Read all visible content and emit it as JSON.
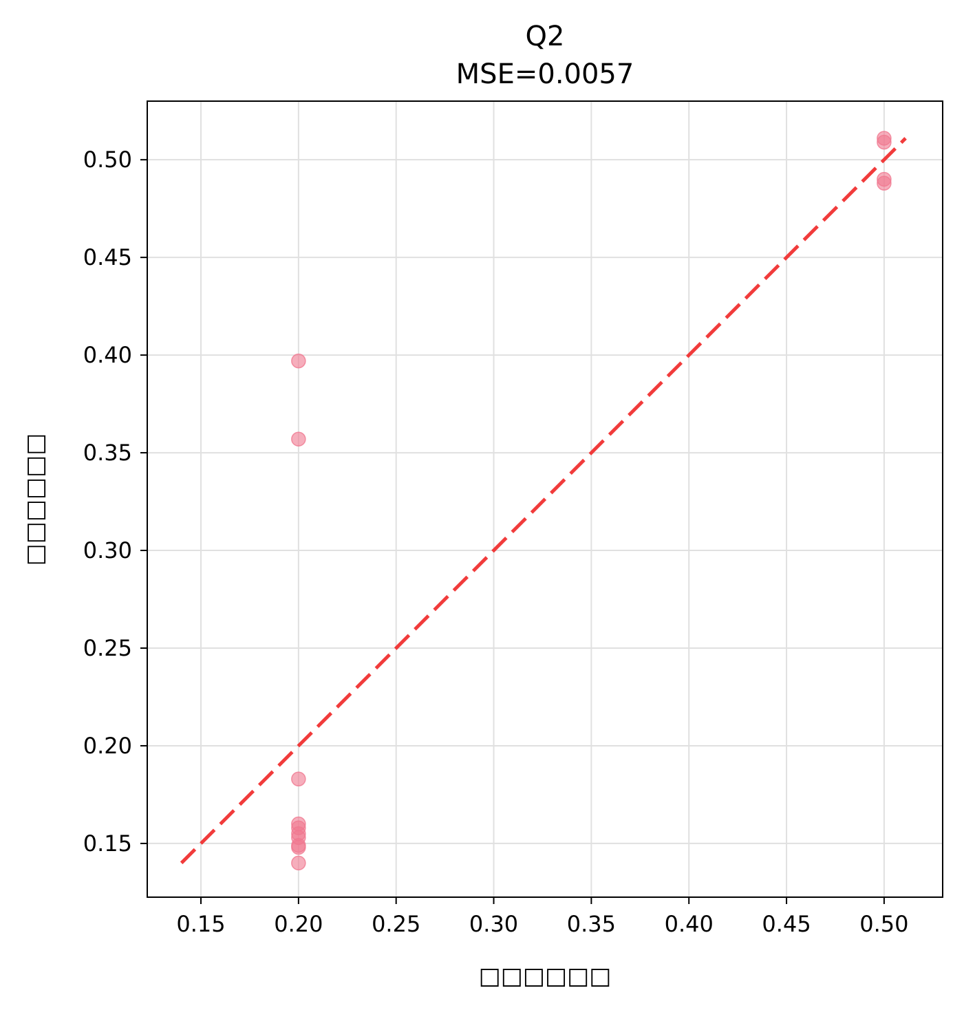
{
  "chart_data": {
    "type": "scatter",
    "title": [
      "Q2",
      "MSE=0.0057"
    ],
    "xlabel": "□□□□□□",
    "ylabel": "□□□□□□",
    "xlim": [
      0.1225,
      0.53
    ],
    "ylim": [
      0.1225,
      0.53
    ],
    "xticks": [
      "0.15",
      "0.20",
      "0.25",
      "0.30",
      "0.35",
      "0.40",
      "0.45",
      "0.50"
    ],
    "yticks": [
      "0.15",
      "0.20",
      "0.25",
      "0.30",
      "0.35",
      "0.40",
      "0.45",
      "0.50"
    ],
    "grid": true,
    "points": {
      "color": "#f07890",
      "x": [
        0.2,
        0.2,
        0.2,
        0.2,
        0.2,
        0.2,
        0.2,
        0.2,
        0.2,
        0.2,
        0.5,
        0.5,
        0.5,
        0.5
      ],
      "y": [
        0.397,
        0.357,
        0.183,
        0.16,
        0.158,
        0.155,
        0.153,
        0.149,
        0.148,
        0.14,
        0.511,
        0.509,
        0.49,
        0.488
      ]
    },
    "reference_line": {
      "style": "dashed",
      "color": "#f03030",
      "x": [
        0.14,
        0.511
      ],
      "y": [
        0.14,
        0.511
      ]
    }
  }
}
